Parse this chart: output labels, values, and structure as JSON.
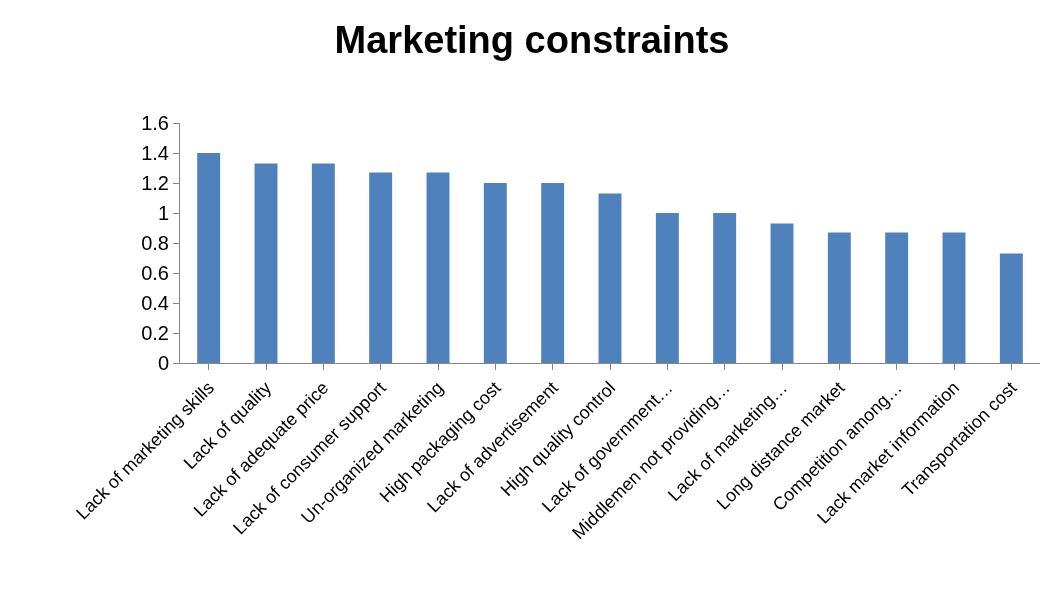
{
  "chart_data": {
    "type": "bar",
    "title": "Marketing constraints",
    "categories": [
      "Lack of marketing skills",
      "Lack of quality",
      "Lack of adequate price",
      "Lack of consumer support",
      "Un-organized marketing",
      "High packaging cost",
      "Lack of advertisement",
      "High quality control",
      "Lack of government…",
      "Middlemen not providing…",
      "Lack of marketing…",
      "Long distance market",
      "Competition among…",
      "Lack market information",
      "Transportation cost"
    ],
    "values": [
      1.4,
      1.33,
      1.33,
      1.27,
      1.27,
      1.2,
      1.2,
      1.13,
      1.0,
      1.0,
      0.93,
      0.87,
      0.87,
      0.87,
      0.73
    ],
    "color": "#4f81bd",
    "ylim": [
      0,
      1.6
    ],
    "yticks": [
      0,
      0.2,
      0.4,
      0.6,
      0.8,
      1,
      1.2,
      1.4,
      1.6
    ],
    "grid": false,
    "legend": false
  }
}
